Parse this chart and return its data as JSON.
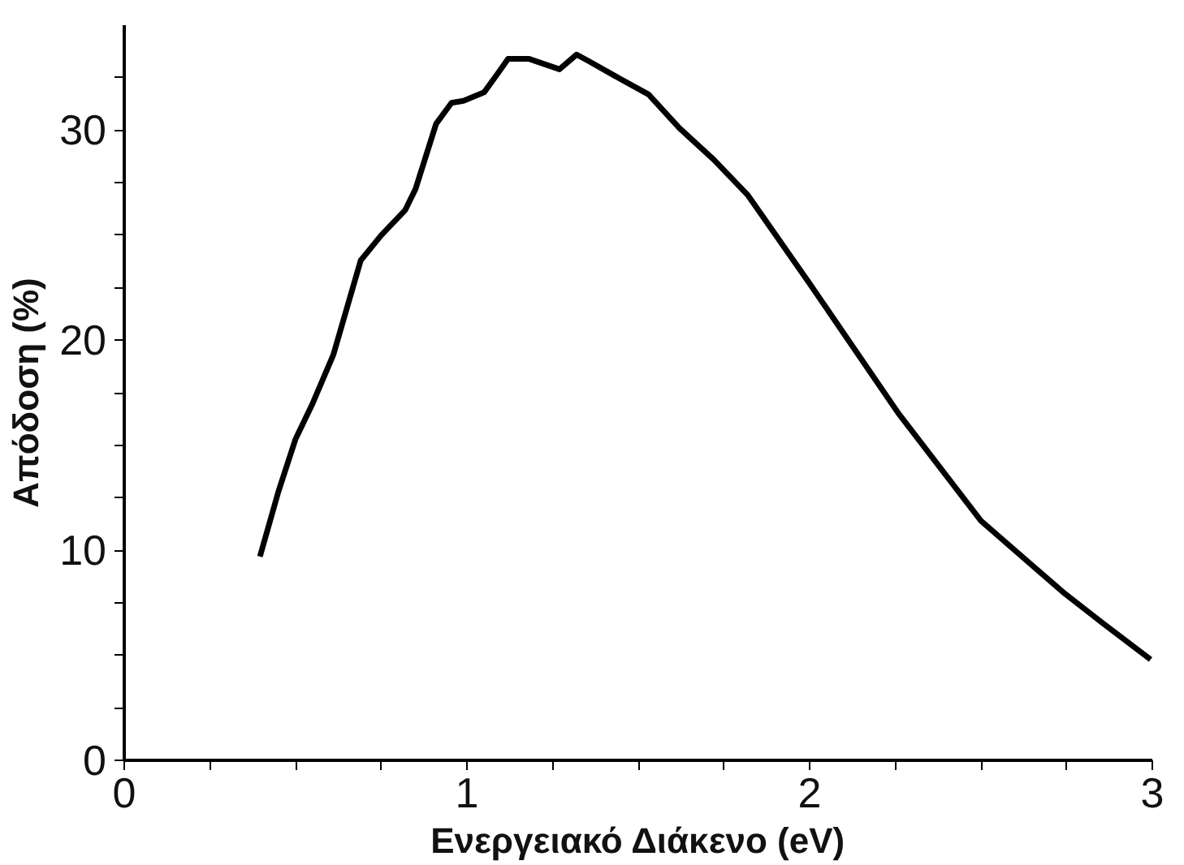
{
  "chart_data": {
    "type": "line",
    "xlabel": "Ενεργειακό Διάκενο (eV)",
    "ylabel": "Απόδοση (%)",
    "x": [
      0.396,
      0.45,
      0.5,
      0.55,
      0.61,
      0.69,
      0.75,
      0.82,
      0.85,
      0.91,
      0.955,
      0.99,
      1.05,
      1.09,
      1.12,
      1.18,
      1.27,
      1.32,
      1.354,
      1.43,
      1.53,
      1.62,
      1.72,
      1.82,
      2.0,
      2.26,
      2.5,
      2.74,
      2.85,
      2.995
    ],
    "series": [
      {
        "color": "#000000",
        "values": [
          9.7,
          12.8,
          15.3,
          17.0,
          19.3,
          23.8,
          25.0,
          26.2,
          27.2,
          30.3,
          31.3,
          31.4,
          31.8,
          32.7,
          33.4,
          33.4,
          32.9,
          33.6,
          33.3,
          32.6,
          31.7,
          30.1,
          28.6,
          26.9,
          22.7,
          16.5,
          11.4,
          8.0,
          6.6,
          4.8
        ]
      }
    ],
    "xlim": [
      0,
      3
    ],
    "ylim": [
      0,
      35
    ],
    "xticks": [
      0,
      {
        "value": 0.25,
        "label": null
      },
      {
        "value": 0.5,
        "label": null
      },
      {
        "value": 0.75,
        "label": null
      },
      1,
      {
        "value": 1.25,
        "label": null
      },
      {
        "value": 1.5,
        "label": null
      },
      {
        "value": 1.75,
        "label": null
      },
      2,
      {
        "value": 2.25,
        "label": null
      },
      {
        "value": 2.5,
        "label": null
      },
      {
        "value": 2.75,
        "label": null
      },
      3
    ],
    "yticks": [
      0,
      {
        "value": 2.5,
        "label": null
      },
      {
        "value": 5,
        "label": null
      },
      {
        "value": 7.5,
        "label": null
      },
      10,
      {
        "value": 12.5,
        "label": null
      },
      {
        "value": 15,
        "label": null
      },
      {
        "value": 17.5,
        "label": null
      },
      20,
      {
        "value": 22.5,
        "label": null
      },
      {
        "value": 25,
        "label": null
      },
      {
        "value": 27.5,
        "label": null
      },
      30,
      {
        "value": 32.5,
        "label": null
      }
    ],
    "grid": false,
    "marker": "none",
    "line_style": "solid"
  }
}
